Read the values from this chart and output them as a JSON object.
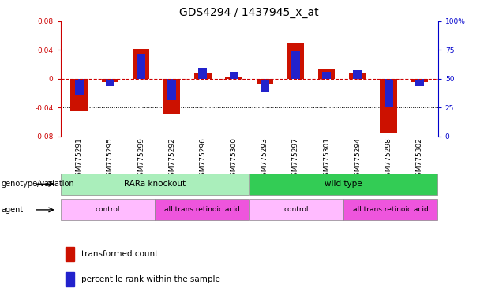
{
  "title": "GDS4294 / 1437945_x_at",
  "samples": [
    "GSM775291",
    "GSM775295",
    "GSM775299",
    "GSM775292",
    "GSM775296",
    "GSM775300",
    "GSM775293",
    "GSM775297",
    "GSM775301",
    "GSM775294",
    "GSM775298",
    "GSM775302"
  ],
  "red_values": [
    -0.045,
    -0.005,
    0.042,
    -0.048,
    0.008,
    0.003,
    -0.007,
    0.05,
    0.013,
    0.007,
    -0.075,
    -0.005
  ],
  "blue_values": [
    -0.022,
    -0.01,
    0.034,
    -0.03,
    0.015,
    0.01,
    -0.018,
    0.038,
    0.01,
    0.012,
    -0.04,
    -0.01
  ],
  "ylim_left": [
    -0.08,
    0.08
  ],
  "ylim_right": [
    0,
    100
  ],
  "yticks_left": [
    -0.08,
    -0.04,
    0.0,
    0.04,
    0.08
  ],
  "ytick_labels_left": [
    "-0.08",
    "-0.04",
    "0",
    "0.04",
    "0.08"
  ],
  "yticks_right": [
    0,
    25,
    50,
    75,
    100
  ],
  "ytick_labels_right": [
    "0",
    "25",
    "50",
    "75",
    "100%"
  ],
  "hline_color": "#cc0000",
  "grid_color": "#000000",
  "bar_red_color": "#cc1100",
  "bar_blue_color": "#2222cc",
  "genotype_groups": [
    {
      "label": "RARa knockout",
      "start": 0,
      "end": 6,
      "color": "#aaeebb",
      "text_color": "#000000"
    },
    {
      "label": "wild type",
      "start": 6,
      "end": 12,
      "color": "#33cc55",
      "text_color": "#000000"
    }
  ],
  "agent_groups": [
    {
      "label": "control",
      "start": 0,
      "end": 3,
      "color": "#ffbbff",
      "text_color": "#000000"
    },
    {
      "label": "all trans retinoic acid",
      "start": 3,
      "end": 6,
      "color": "#ee55dd",
      "text_color": "#000000"
    },
    {
      "label": "control",
      "start": 6,
      "end": 9,
      "color": "#ffbbff",
      "text_color": "#000000"
    },
    {
      "label": "all trans retinoic acid",
      "start": 9,
      "end": 12,
      "color": "#ee55dd",
      "text_color": "#000000"
    }
  ],
  "legend_red_label": "transformed count",
  "legend_blue_label": "percentile rank within the sample",
  "left_label_color": "#cc0000",
  "right_label_color": "#0000cc",
  "background_color": "#ffffff",
  "title_fontsize": 10,
  "tick_fontsize": 6.5,
  "label_fontsize": 7.5,
  "annotation_fontsize": 6.5,
  "legend_fontsize": 7.5
}
